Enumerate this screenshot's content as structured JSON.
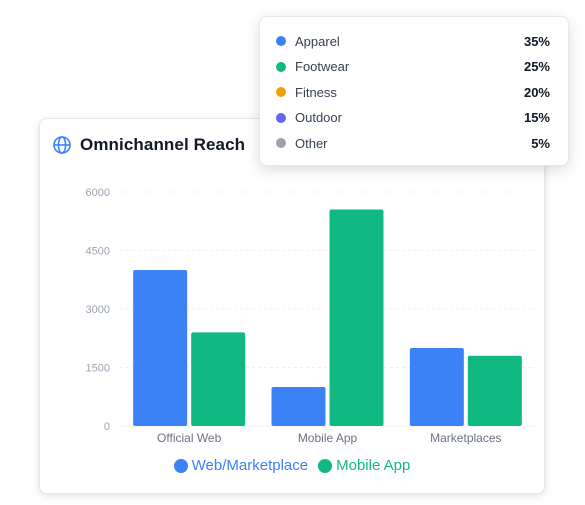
{
  "card": {
    "title": "Omnichannel Reach",
    "icon": "globe-icon"
  },
  "chart_data": {
    "type": "bar",
    "categories": [
      "Official Web",
      "Mobile App",
      "Marketplaces"
    ],
    "series": [
      {
        "name": "Web/Marketplace",
        "color": "#3b82f6",
        "values": [
          4000,
          1000,
          2000
        ]
      },
      {
        "name": "Mobile App",
        "color": "#10b981",
        "values": [
          2400,
          5550,
          1800
        ]
      }
    ],
    "yticks": [
      "0",
      "1500",
      "3000",
      "4500",
      "6000"
    ],
    "ylim": [
      0,
      6000
    ],
    "grid": true,
    "legend": "bottom"
  },
  "popover": {
    "items": [
      {
        "label": "Apparel",
        "value": "35%",
        "color": "#3b82f6"
      },
      {
        "label": "Footwear",
        "value": "25%",
        "color": "#10b981"
      },
      {
        "label": "Fitness",
        "value": "20%",
        "color": "#f59e0b"
      },
      {
        "label": "Outdoor",
        "value": "15%",
        "color": "#6366f1"
      },
      {
        "label": "Other",
        "value": "5%",
        "color": "#9ca3af"
      }
    ]
  }
}
